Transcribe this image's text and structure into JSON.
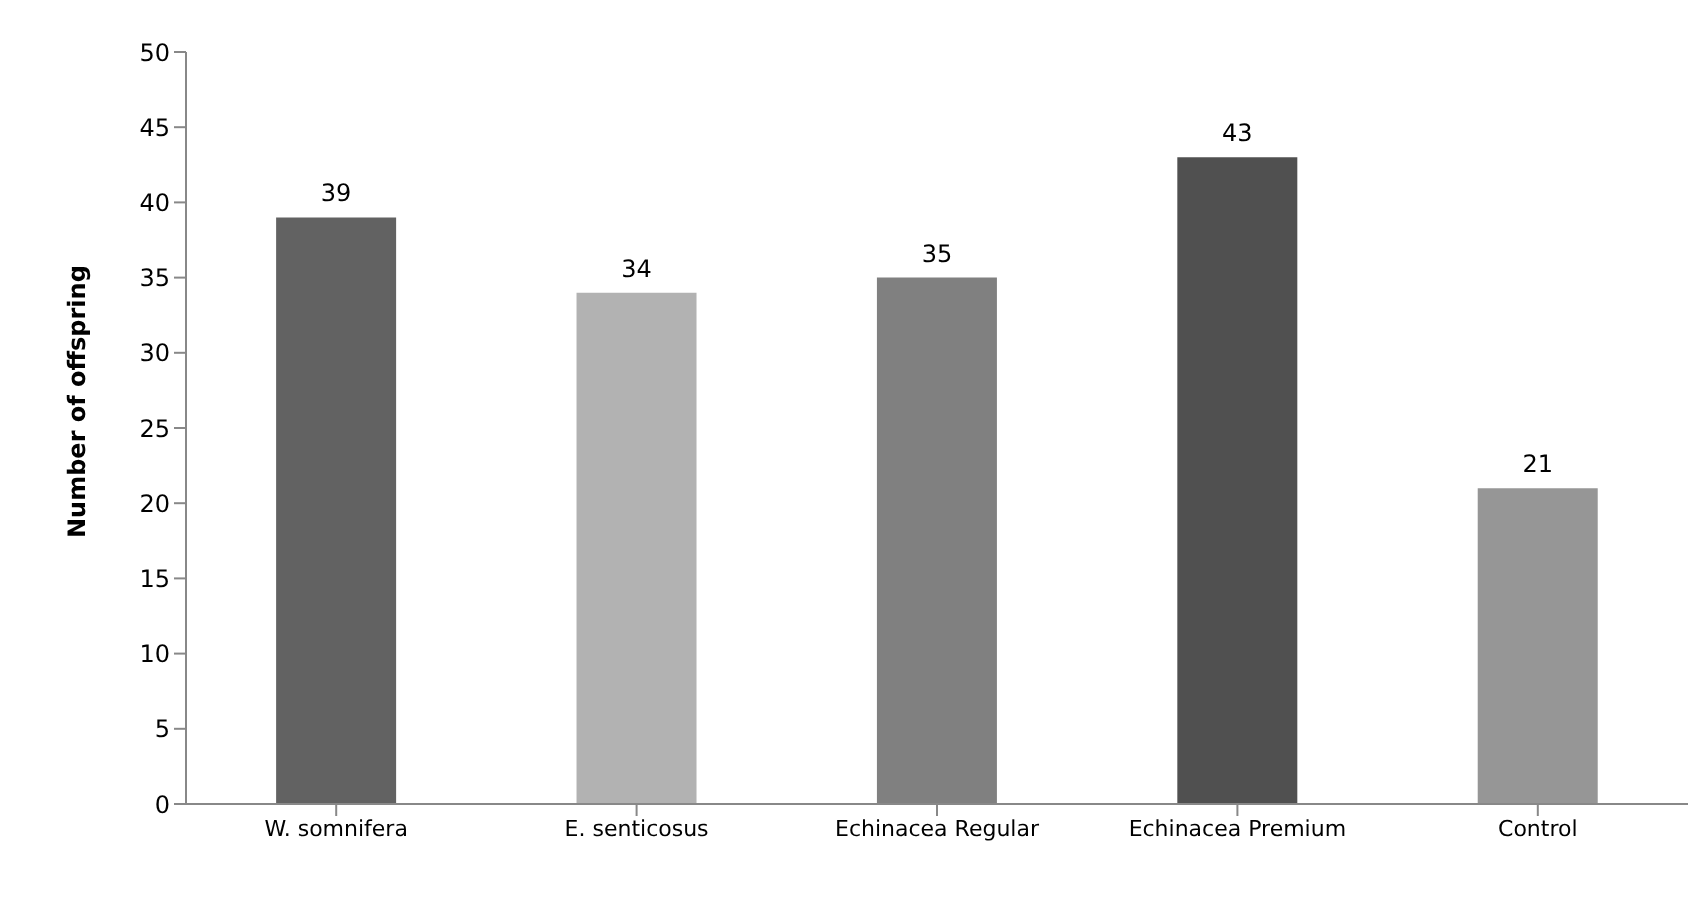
{
  "chart_data": {
    "type": "bar",
    "ylabel": "Number of offspring",
    "categories": [
      "W. somnifera",
      "E. senticosus",
      "Echinacea Regular",
      "Echinacea Premium",
      "Control"
    ],
    "values": [
      39,
      34,
      35,
      43,
      21
    ],
    "colors": [
      "#626262",
      "#b2b2b2",
      "#808080",
      "#505050",
      "#969696"
    ],
    "ylim": [
      0,
      50
    ],
    "yticks": [
      0,
      5,
      10,
      15,
      20,
      25,
      30,
      35,
      40,
      45,
      50
    ],
    "grid": false,
    "data_labels": true
  }
}
